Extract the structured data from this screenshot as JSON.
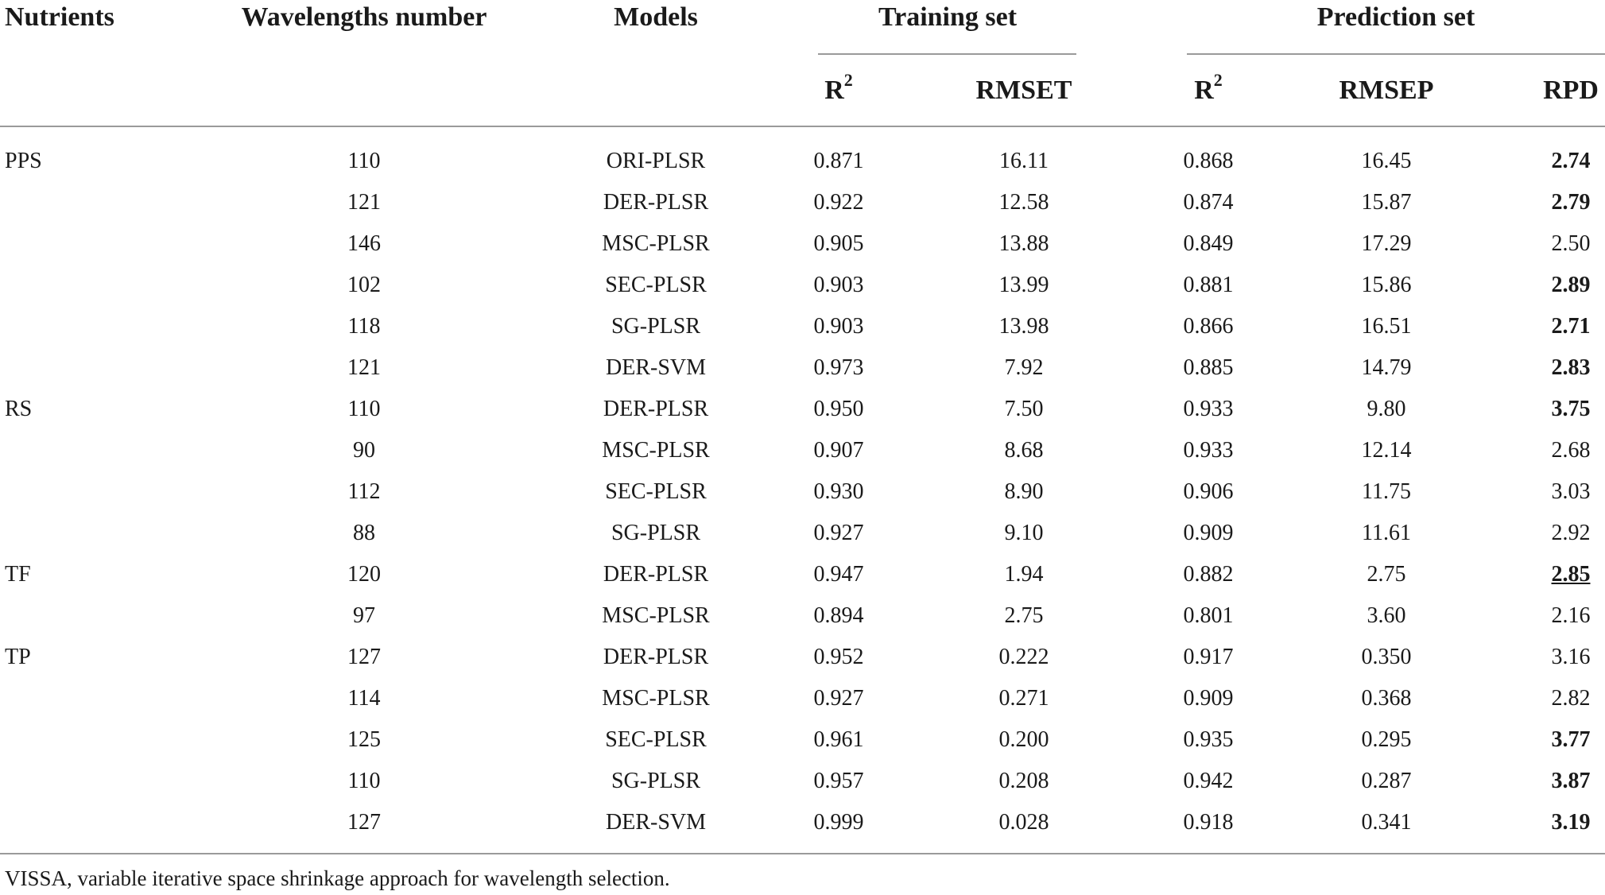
{
  "headers": {
    "nutrients": "Nutrients",
    "wavelengths": "Wavelengths number",
    "models": "Models",
    "training_set": "Training set",
    "prediction_set": "Prediction set",
    "r2_base": "R",
    "r2_sup": "2",
    "rmset": "RMSET",
    "rmsep": "RMSEP",
    "rpd": "RPD"
  },
  "rows": [
    {
      "nutrient": "PPS",
      "wl": "110",
      "model": "ORI-PLSR",
      "r2t": "0.871",
      "rmset": "16.11",
      "r2p": "0.868",
      "rmsep": "16.45",
      "rpd": "2.74",
      "rpd_bold": true,
      "rpd_underline": false
    },
    {
      "nutrient": "",
      "wl": "121",
      "model": "DER-PLSR",
      "r2t": "0.922",
      "rmset": "12.58",
      "r2p": "0.874",
      "rmsep": "15.87",
      "rpd": "2.79",
      "rpd_bold": true,
      "rpd_underline": false
    },
    {
      "nutrient": "",
      "wl": "146",
      "model": "MSC-PLSR",
      "r2t": "0.905",
      "rmset": "13.88",
      "r2p": "0.849",
      "rmsep": "17.29",
      "rpd": "2.50",
      "rpd_bold": false,
      "rpd_underline": false
    },
    {
      "nutrient": "",
      "wl": "102",
      "model": "SEC-PLSR",
      "r2t": "0.903",
      "rmset": "13.99",
      "r2p": "0.881",
      "rmsep": "15.86",
      "rpd": "2.89",
      "rpd_bold": true,
      "rpd_underline": false
    },
    {
      "nutrient": "",
      "wl": "118",
      "model": "SG-PLSR",
      "r2t": "0.903",
      "rmset": "13.98",
      "r2p": "0.866",
      "rmsep": "16.51",
      "rpd": "2.71",
      "rpd_bold": true,
      "rpd_underline": false
    },
    {
      "nutrient": "",
      "wl": "121",
      "model": "DER-SVM",
      "r2t": "0.973",
      "rmset": "7.92",
      "r2p": "0.885",
      "rmsep": "14.79",
      "rpd": "2.83",
      "rpd_bold": true,
      "rpd_underline": false
    },
    {
      "nutrient": "RS",
      "wl": "110",
      "model": "DER-PLSR",
      "r2t": "0.950",
      "rmset": "7.50",
      "r2p": "0.933",
      "rmsep": "9.80",
      "rpd": "3.75",
      "rpd_bold": true,
      "rpd_underline": false
    },
    {
      "nutrient": "",
      "wl": "90",
      "model": "MSC-PLSR",
      "r2t": "0.907",
      "rmset": "8.68",
      "r2p": "0.933",
      "rmsep": "12.14",
      "rpd": "2.68",
      "rpd_bold": false,
      "rpd_underline": false
    },
    {
      "nutrient": "",
      "wl": "112",
      "model": "SEC-PLSR",
      "r2t": "0.930",
      "rmset": "8.90",
      "r2p": "0.906",
      "rmsep": "11.75",
      "rpd": "3.03",
      "rpd_bold": false,
      "rpd_underline": false
    },
    {
      "nutrient": "",
      "wl": "88",
      "model": "SG-PLSR",
      "r2t": "0.927",
      "rmset": "9.10",
      "r2p": "0.909",
      "rmsep": "11.61",
      "rpd": "2.92",
      "rpd_bold": false,
      "rpd_underline": false
    },
    {
      "nutrient": "TF",
      "wl": "120",
      "model": "DER-PLSR",
      "r2t": "0.947",
      "rmset": "1.94",
      "r2p": "0.882",
      "rmsep": "2.75",
      "rpd": "2.85",
      "rpd_bold": true,
      "rpd_underline": true
    },
    {
      "nutrient": "",
      "wl": "97",
      "model": "MSC-PLSR",
      "r2t": "0.894",
      "rmset": "2.75",
      "r2p": "0.801",
      "rmsep": "3.60",
      "rpd": "2.16",
      "rpd_bold": false,
      "rpd_underline": false
    },
    {
      "nutrient": "TP",
      "wl": "127",
      "model": "DER-PLSR",
      "r2t": "0.952",
      "rmset": "0.222",
      "r2p": "0.917",
      "rmsep": "0.350",
      "rpd": "3.16",
      "rpd_bold": false,
      "rpd_underline": false
    },
    {
      "nutrient": "",
      "wl": "114",
      "model": "MSC-PLSR",
      "r2t": "0.927",
      "rmset": "0.271",
      "r2p": "0.909",
      "rmsep": "0.368",
      "rpd": "2.82",
      "rpd_bold": false,
      "rpd_underline": false
    },
    {
      "nutrient": "",
      "wl": "125",
      "model": "SEC-PLSR",
      "r2t": "0.961",
      "rmset": "0.200",
      "r2p": "0.935",
      "rmsep": "0.295",
      "rpd": "3.77",
      "rpd_bold": true,
      "rpd_underline": false
    },
    {
      "nutrient": "",
      "wl": "110",
      "model": "SG-PLSR",
      "r2t": "0.957",
      "rmset": "0.208",
      "r2p": "0.942",
      "rmsep": "0.287",
      "rpd": "3.87",
      "rpd_bold": true,
      "rpd_underline": false
    },
    {
      "nutrient": "",
      "wl": "127",
      "model": "DER-SVM",
      "r2t": "0.999",
      "rmset": "0.028",
      "r2p": "0.918",
      "rmsep": "0.341",
      "rpd": "3.19",
      "rpd_bold": true,
      "rpd_underline": false
    }
  ],
  "footnote": "VISSA, variable iterative space shrinkage approach for wavelength selection."
}
